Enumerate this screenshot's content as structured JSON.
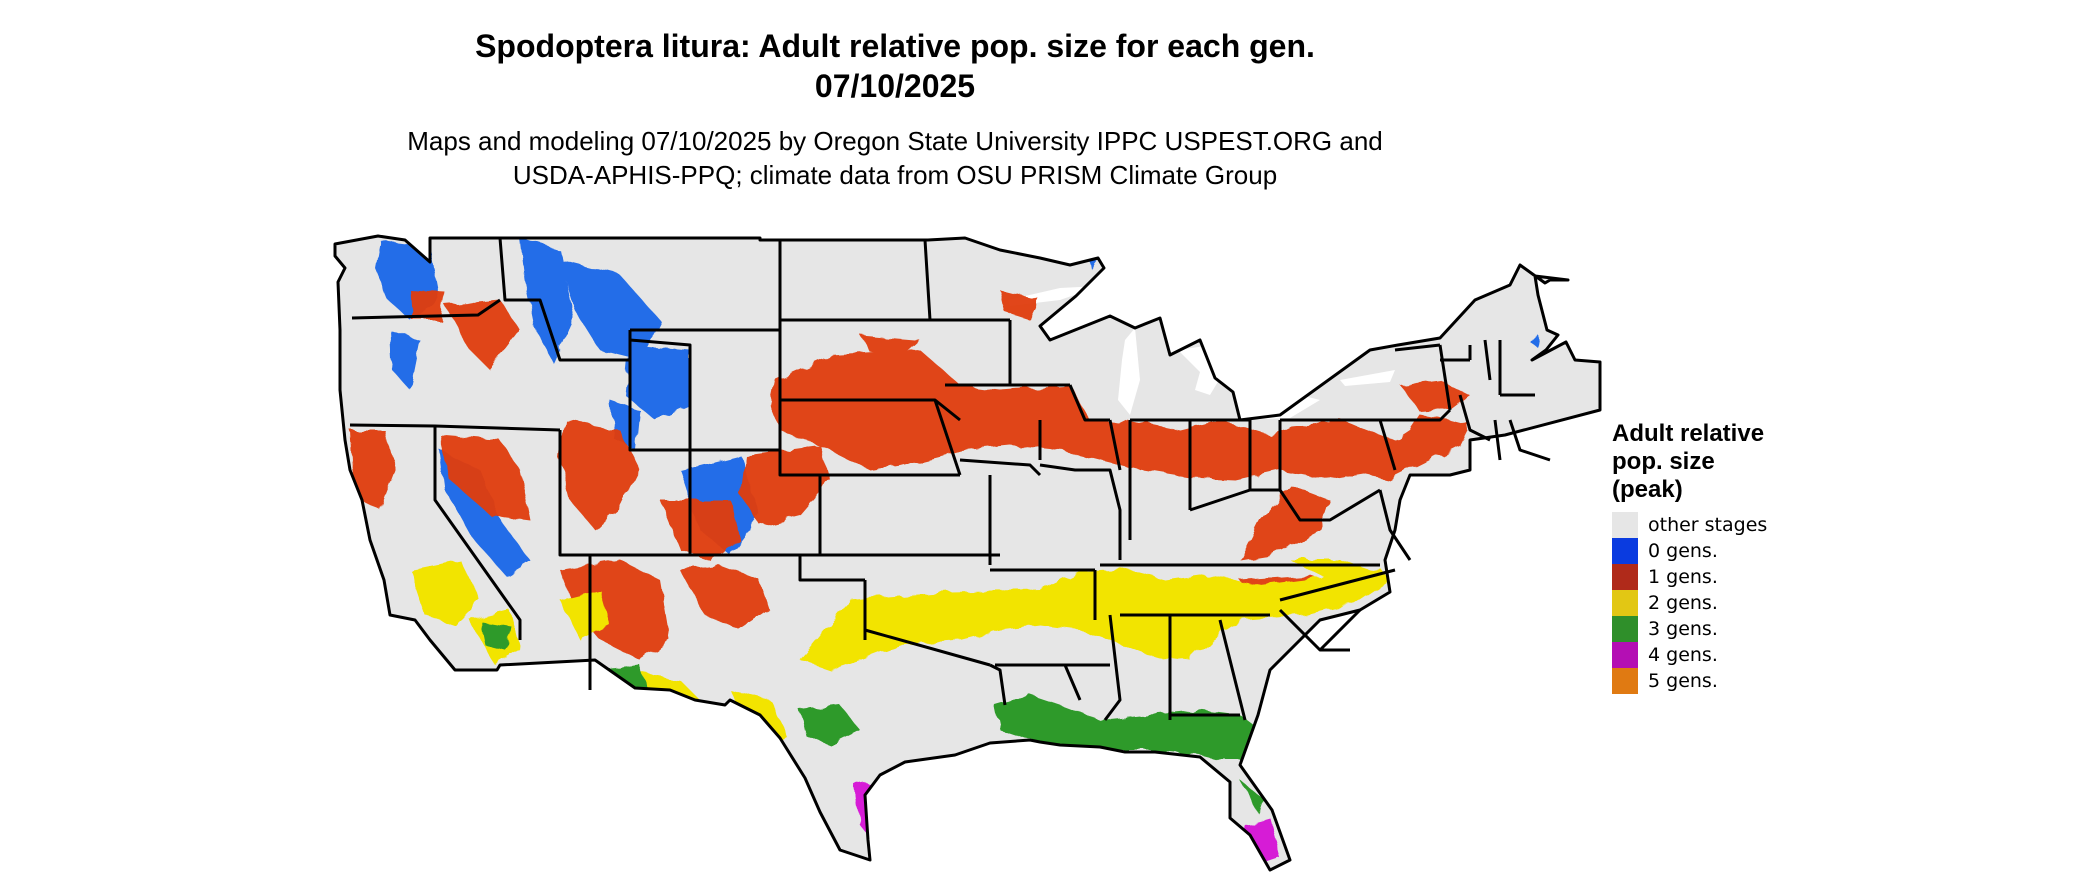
{
  "title_line1": "Spodoptera litura: Adult relative pop. size for each gen.",
  "title_line2": "07/10/2025",
  "subtitle_line1": "Maps and modeling 07/10/2025 by Oregon State University IPPC USPEST.ORG and",
  "subtitle_line2": "USDA-APHIS-PPQ; climate data from OSU PRISM Climate Group",
  "legend": {
    "title_line1": "Adult relative",
    "title_line2": "pop. size",
    "title_line3": "(peak)",
    "items": [
      {
        "label": "other stages",
        "color": "#e6e6e6"
      },
      {
        "label": "0 gens.",
        "color": "#0a3be0"
      },
      {
        "label": "1 gens.",
        "color": "#b02a1a"
      },
      {
        "label": "2 gens.",
        "color": "#e2c714"
      },
      {
        "label": "3 gens.",
        "color": "#2f8f2a"
      },
      {
        "label": "4 gens.",
        "color": "#b40fb4"
      },
      {
        "label": "5 gens.",
        "color": "#e07a12"
      }
    ]
  },
  "map_colors": {
    "land": "#e6e6e6",
    "border": "#000000",
    "zero_gens": "#1060e8",
    "one_gen": "#e03c0c",
    "two_gens": "#f2e400",
    "three_gens": "#2f9a2a",
    "four_gens": "#d61ed6"
  }
}
